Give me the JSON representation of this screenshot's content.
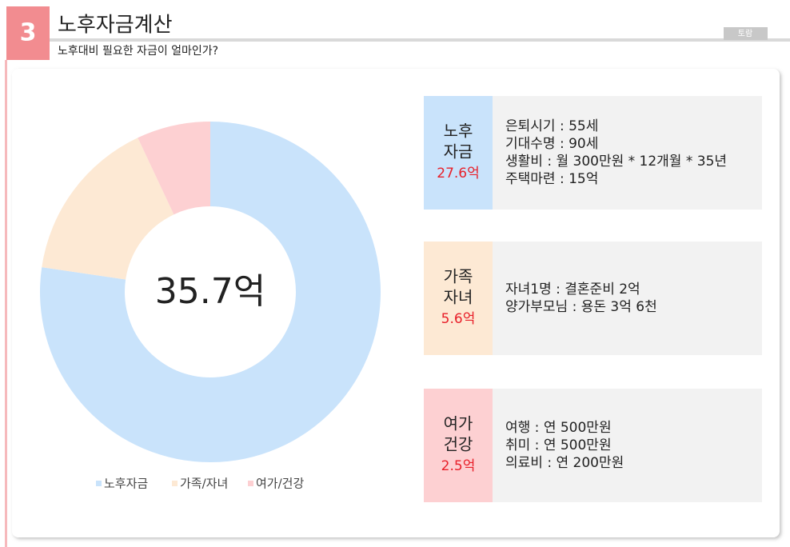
{
  "header": {
    "number": "3",
    "title": "노후자금계산",
    "subtitle": "노후대비 필요한 자금이 얼마인가?",
    "tag": "토람"
  },
  "chart_data": {
    "type": "pie",
    "donut": true,
    "center_label": "35.7억",
    "categories": [
      "노후자금",
      "가족/자녀",
      "여가/건강"
    ],
    "values": [
      27.6,
      5.6,
      2.5
    ],
    "value_labels": [
      "27.6억",
      "5.6억",
      "2.5억"
    ],
    "colors": [
      "#c9e3fb",
      "#fde9d4",
      "#fdd0d2"
    ],
    "legend": "bottom"
  },
  "panels": [
    {
      "title": [
        "노후",
        "자금"
      ],
      "lines": [
        "은퇴시기 : 55세",
        "기대수명 : 90세",
        "생활비 : 월 300만원 * 12개월 * 35년",
        "주택마련 : 15억"
      ]
    },
    {
      "title": [
        "가족",
        "자녀"
      ],
      "lines": [
        "자녀1명 : 결혼준비 2억",
        "양가부모님  : 용돈 3억 6천"
      ]
    },
    {
      "title": [
        "여가",
        "건강"
      ],
      "lines": [
        "여행 : 연 500만원",
        "취미 : 연 500만원",
        "의료비 : 연 200만원"
      ]
    }
  ]
}
